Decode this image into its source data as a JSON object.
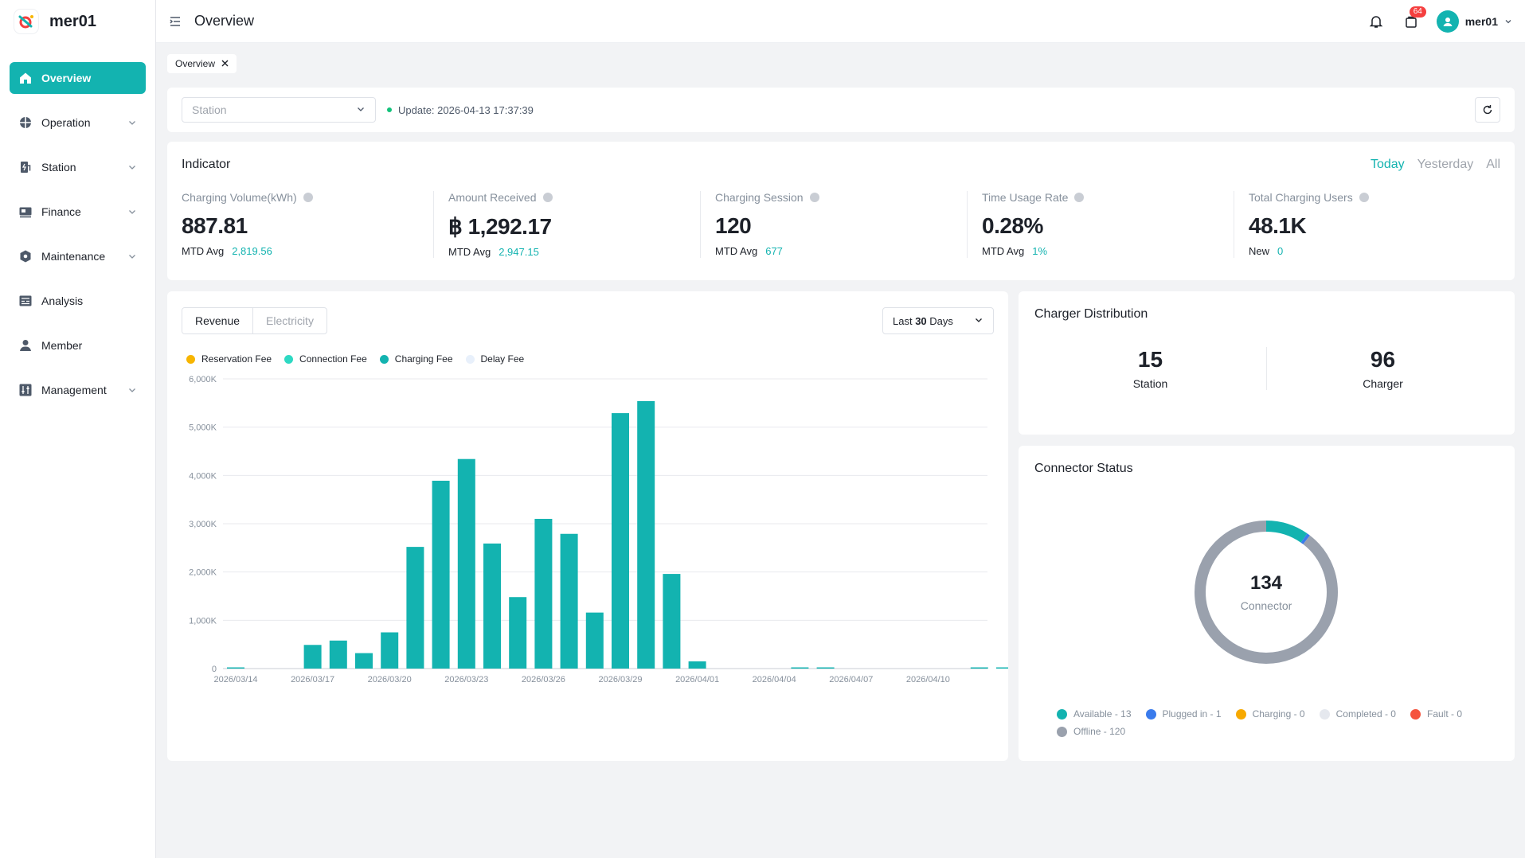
{
  "app": {
    "name": "mer01"
  },
  "sidebar": {
    "items": [
      {
        "label": "Overview",
        "icon": "home-icon",
        "active": true,
        "expandable": false
      },
      {
        "label": "Operation",
        "icon": "operation-icon",
        "active": false,
        "expandable": true
      },
      {
        "label": "Station",
        "icon": "station-icon",
        "active": false,
        "expandable": true
      },
      {
        "label": "Finance",
        "icon": "finance-icon",
        "active": false,
        "expandable": true
      },
      {
        "label": "Maintenance",
        "icon": "maintenance-icon",
        "active": false,
        "expandable": true
      },
      {
        "label": "Analysis",
        "icon": "analysis-icon",
        "active": false,
        "expandable": false
      },
      {
        "label": "Member",
        "icon": "member-icon",
        "active": false,
        "expandable": false
      },
      {
        "label": "Management",
        "icon": "management-icon",
        "active": false,
        "expandable": true
      }
    ]
  },
  "header": {
    "title": "Overview",
    "cart_badge": "64",
    "username": "mer01"
  },
  "tabs": [
    {
      "label": "Overview"
    }
  ],
  "filter": {
    "station_placeholder": "Station",
    "update_prefix": "Update:",
    "update_time": "2026-04-13 17:37:39"
  },
  "indicator": {
    "title": "Indicator",
    "periods": [
      "Today",
      "Yesterday",
      "All"
    ],
    "active_period": "Today",
    "metrics": [
      {
        "label": "Charging Volume(kWh)",
        "value": "887.81",
        "sub_label": "MTD Avg",
        "sub_value": "2,819.56"
      },
      {
        "label": "Amount Received",
        "value": "฿ 1,292.17",
        "sub_label": "MTD Avg",
        "sub_value": "2,947.15"
      },
      {
        "label": "Charging Session",
        "value": "120",
        "sub_label": "MTD Avg",
        "sub_value": "677"
      },
      {
        "label": "Time Usage Rate",
        "value": "0.28%",
        "sub_label": "MTD Avg",
        "sub_value": "1%"
      },
      {
        "label": "Total Charging Users",
        "value": "48.1K",
        "sub_label": "New",
        "sub_value": "0"
      }
    ]
  },
  "revenue": {
    "segments": [
      "Revenue",
      "Electricity"
    ],
    "active_segment": "Revenue",
    "range_prefix": "Last",
    "range_number": "30",
    "range_suffix": "Days",
    "legend": [
      {
        "name": "Reservation Fee",
        "color": "#f7b500"
      },
      {
        "name": "Connection Fee",
        "color": "#2ed9c3"
      },
      {
        "name": "Charging Fee",
        "color": "#13b3b0"
      },
      {
        "name": "Delay Fee",
        "color": "#e8f0fb"
      }
    ]
  },
  "chart_data": {
    "type": "bar",
    "title": "",
    "xlabel": "",
    "ylabel": "",
    "ylim": [
      0,
      6000
    ],
    "y_ticks": [
      "0",
      "1,000K",
      "2,000K",
      "3,000K",
      "4,000K",
      "5,000K",
      "6,000K"
    ],
    "x_tick_labels": [
      "2026/03/14",
      "2026/03/17",
      "2026/03/20",
      "2026/03/23",
      "2026/03/26",
      "2026/03/29",
      "2026/04/01",
      "2026/04/04",
      "2026/04/07",
      "2026/04/10"
    ],
    "categories": [
      "2026/03/14",
      "2026/03/15",
      "2026/03/16",
      "2026/03/17",
      "2026/03/18",
      "2026/03/19",
      "2026/03/20",
      "2026/03/21",
      "2026/03/22",
      "2026/03/23",
      "2026/03/24",
      "2026/03/25",
      "2026/03/26",
      "2026/03/27",
      "2026/03/28",
      "2026/03/29",
      "2026/03/30",
      "2026/03/31",
      "2026/04/01",
      "2026/04/02",
      "2026/04/03",
      "2026/04/04",
      "2026/04/05",
      "2026/04/06",
      "2026/04/07",
      "2026/04/08",
      "2026/04/09",
      "2026/04/10",
      "2026/04/11",
      "2026/04/12",
      "2026/04/13"
    ],
    "series": [
      {
        "name": "Charging Fee",
        "color": "#13b3b0",
        "values": [
          10,
          0,
          0,
          490,
          580,
          320,
          750,
          2520,
          3890,
          4340,
          2590,
          1480,
          3100,
          2790,
          1160,
          5290,
          5540,
          1960,
          150,
          0,
          0,
          0,
          5,
          5,
          0,
          0,
          0,
          0,
          0,
          10,
          10
        ]
      }
    ]
  },
  "distribution": {
    "title": "Charger Distribution",
    "items": [
      {
        "value": "15",
        "label": "Station"
      },
      {
        "value": "96",
        "label": "Charger"
      }
    ]
  },
  "connector": {
    "title": "Connector Status",
    "total": "134",
    "total_label": "Connector",
    "legend": [
      {
        "label": "Available - 13",
        "value": 13,
        "color": "#13b3b0"
      },
      {
        "label": "Plugged in - 1",
        "value": 1,
        "color": "#3a7bec"
      },
      {
        "label": "Charging - 0",
        "value": 0,
        "color": "#f7a900"
      },
      {
        "label": "Completed - 0",
        "value": 0,
        "color": "#e5e8ee"
      },
      {
        "label": "Fault - 0",
        "value": 0,
        "color": "#f5533d"
      },
      {
        "label": "Offline - 120",
        "value": 120,
        "color": "#9aa1ad"
      }
    ]
  }
}
